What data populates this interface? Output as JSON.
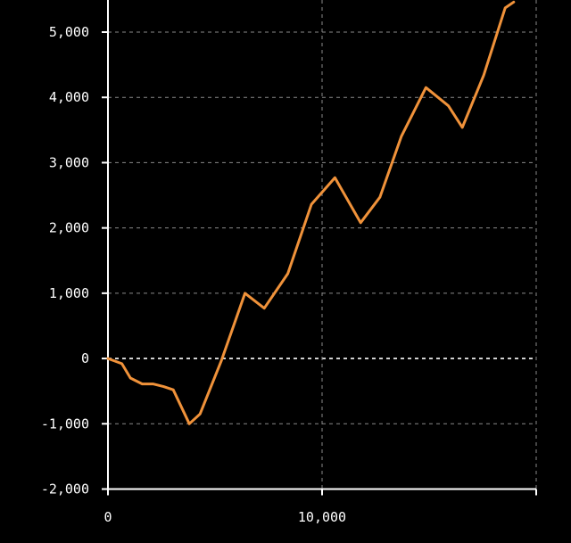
{
  "chart_data": {
    "type": "line",
    "xlim": [
      0,
      20000
    ],
    "ylim": [
      -2000,
      5500
    ],
    "grid": true,
    "x_ticks": [
      {
        "value": 0,
        "label": "0"
      },
      {
        "value": 10000,
        "label": "10,000"
      },
      {
        "value": 20000,
        "label": ""
      }
    ],
    "y_ticks": [
      {
        "value": 5000,
        "label": "5,000"
      },
      {
        "value": 4000,
        "label": "4,000"
      },
      {
        "value": 3000,
        "label": "3,000"
      },
      {
        "value": 2000,
        "label": "2,000"
      },
      {
        "value": 1000,
        "label": "1,000"
      },
      {
        "value": 0,
        "label": "0"
      },
      {
        "value": -1000,
        "label": "-1,000"
      },
      {
        "value": -2000,
        "label": "-2,000"
      }
    ],
    "series": [
      {
        "color": "#f0923a",
        "x": [
          0,
          650,
          1050,
          1600,
          2100,
          2600,
          3050,
          3800,
          4300,
          5300,
          6400,
          7300,
          8400,
          9500,
          10600,
          11800,
          12700,
          13700,
          14850,
          15900,
          16550,
          17550,
          18550,
          18950
        ],
        "y": [
          0,
          -80,
          -300,
          -390,
          -390,
          -430,
          -480,
          -1000,
          -850,
          -30,
          1000,
          770,
          1300,
          2360,
          2770,
          2080,
          2470,
          3400,
          4150,
          3870,
          3540,
          4340,
          5370,
          5460
        ]
      }
    ]
  }
}
